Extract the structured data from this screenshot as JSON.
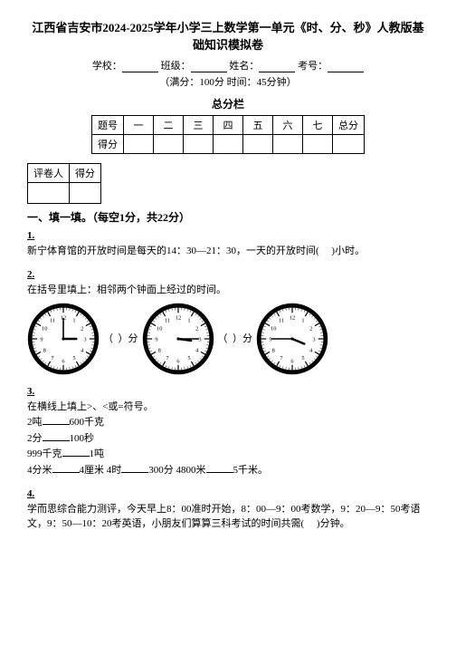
{
  "title": "江西省吉安市2024-2025学年小学三上数学第一单元《时、分、秒》人教版基础知识模拟卷",
  "info": {
    "school_label": "学校：",
    "class_label": "班级：",
    "name_label": "姓名：",
    "exam_no_label": "考号："
  },
  "sub_info": "（满分：100分 时间：45分钟）",
  "score_bar_label": "总分栏",
  "score_table": {
    "row1": [
      "题号",
      "一",
      "二",
      "三",
      "四",
      "五",
      "六",
      "七",
      "总分"
    ],
    "row2_label": "得分"
  },
  "small_table": {
    "c1": "评卷人",
    "c2": "得分"
  },
  "section1": "一、填一填。（每空1分，共22分）",
  "q1": {
    "num": "1.",
    "text_a": "新宁体育馆的开放时间是每天的14：30—21：30，一天的开放时间(",
    "text_b": ")小时。"
  },
  "q2": {
    "num": "2.",
    "text": "在括号里填上：相邻两个钟面上经过的时间。",
    "gap_a": "（",
    "gap_b": "）分",
    "clocks": [
      {
        "h": 3,
        "m": 0
      },
      {
        "h": 3,
        "m": 15
      },
      {
        "h": 3,
        "m": 45
      }
    ],
    "clock_style": {
      "face_fill": "#ffffff",
      "rim_stroke": "#000000",
      "rim_width": 6,
      "tick_stroke": "#000000",
      "num_font": "8px",
      "hand_stroke": "#000000",
      "center_fill": "#000000"
    }
  },
  "q3": {
    "num": "3.",
    "lead": "在横线上填上>、<或=符号。",
    "lines": [
      [
        "2吨",
        "600千克"
      ],
      [
        "2分",
        "100秒"
      ],
      [
        "999千克",
        "1吨"
      ],
      [
        "4分米",
        "4厘米 4时",
        "300分 4800米",
        "5千米。"
      ]
    ]
  },
  "q4": {
    "num": "4.",
    "text_a": "学而思综合能力测评，今天早上8：00准时开始，8：00—9：00考数学，9：20—9：50考语文，9：50—10：20考英语，小朋友们算算三科考试的时间共需(",
    "text_b": ")分钟。"
  }
}
